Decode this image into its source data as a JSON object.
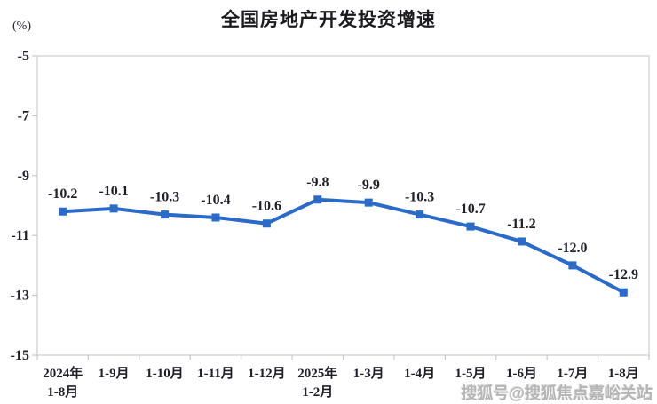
{
  "chart_data": {
    "type": "line",
    "title": "全国房地产开发投资增速",
    "ylabel": "(%)",
    "xlabel": "",
    "categories": [
      "2024年1-8月",
      "1-9月",
      "1-10月",
      "1-11月",
      "1-12月",
      "2025年1-2月",
      "1-3月",
      "1-4月",
      "1-5月",
      "1-6月",
      "1-7月",
      "1-8月"
    ],
    "category_display": [
      [
        "2024年",
        "1-8月"
      ],
      [
        "1-9月"
      ],
      [
        "1-10月"
      ],
      [
        "1-11月"
      ],
      [
        "1-12月"
      ],
      [
        "2025年",
        "1-2月"
      ],
      [
        "1-3月"
      ],
      [
        "1-4月"
      ],
      [
        "1-5月"
      ],
      [
        "1-6月"
      ],
      [
        "1-7月"
      ],
      [
        "1-8月"
      ]
    ],
    "values": [
      -10.2,
      -10.1,
      -10.3,
      -10.4,
      -10.6,
      -9.8,
      -9.9,
      -10.3,
      -10.7,
      -11.2,
      -12.0,
      -12.9
    ],
    "point_labels": [
      "-10.2",
      "-10.1",
      "-10.3",
      "-10.4",
      "-10.6",
      "-9.8",
      "-9.9",
      "-10.3",
      "-10.7",
      "-11.2",
      "-12.0",
      "-12.9"
    ],
    "ylim": [
      -15,
      -5
    ],
    "yticks": [
      -5,
      -7,
      -9,
      -11,
      -13,
      -15
    ],
    "grid": false,
    "legend": "none",
    "line_color": "#2A6AC8",
    "marker": "square",
    "label_color": "#1f1f27",
    "axis_color": "#c9c9c9",
    "border_color": "#d7d7d7"
  },
  "watermark": {
    "text": "搜狐号@搜狐焦点嘉峪关站"
  }
}
